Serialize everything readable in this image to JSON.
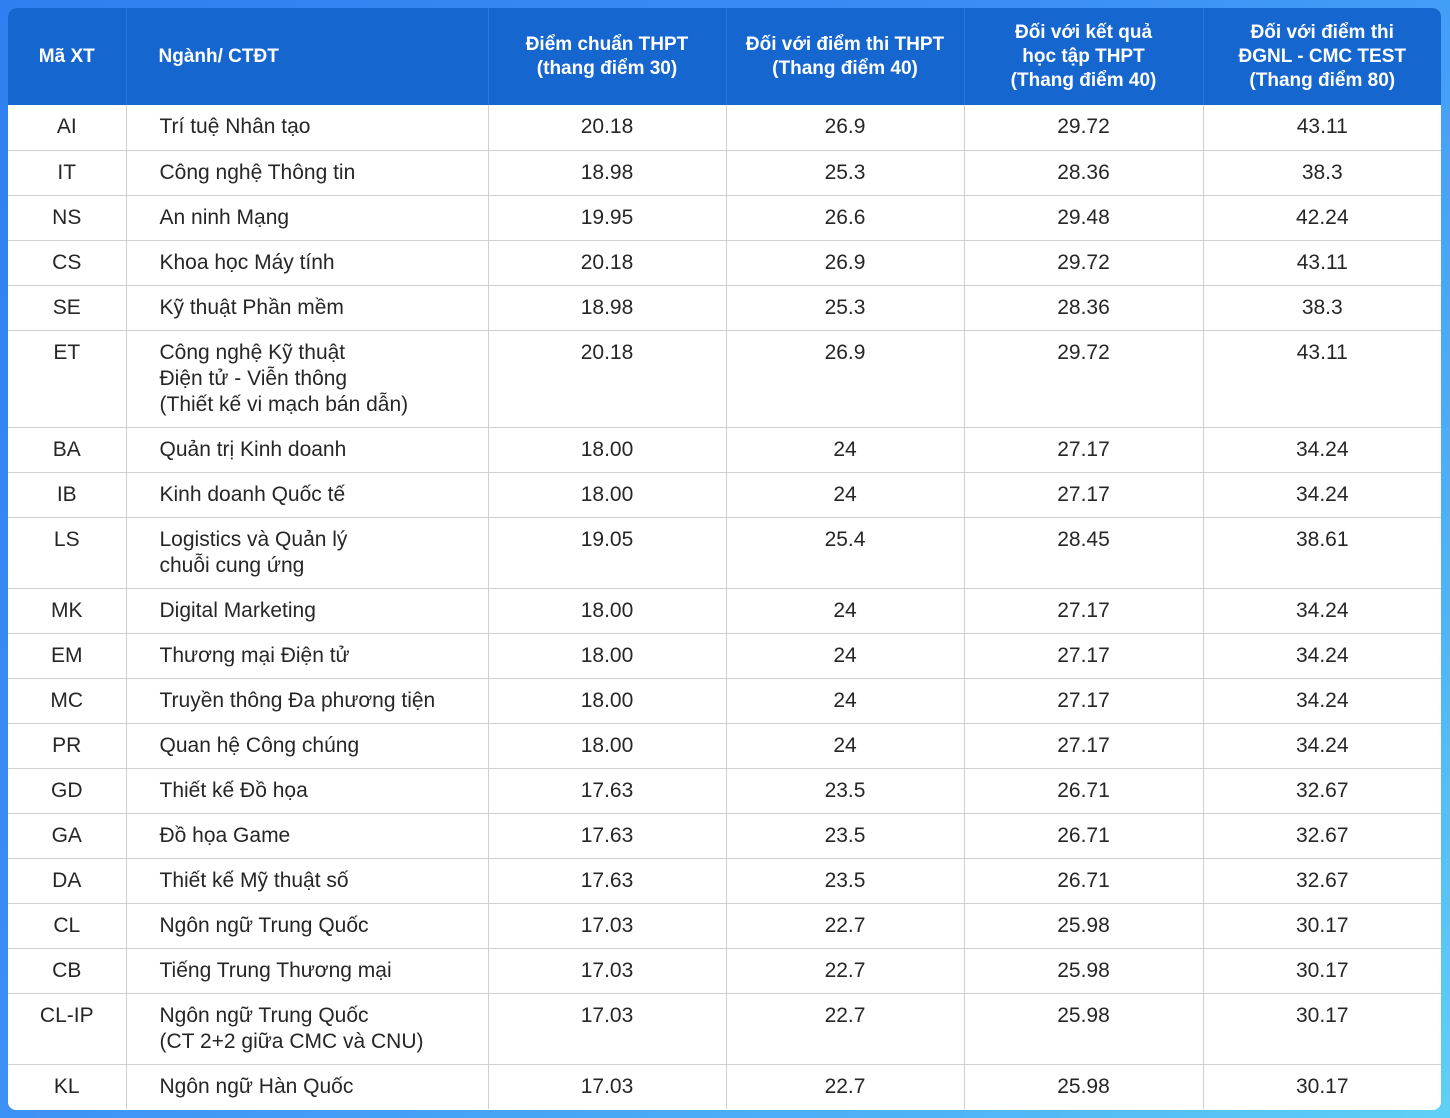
{
  "headers": {
    "code": "Mã XT",
    "program": "Ngành/ CTĐT",
    "thpt30": [
      "Điểm chuẩn THPT",
      "(thang điểm 30)"
    ],
    "thpt40": [
      "Đối với điểm thi THPT",
      "(Thang điểm 40)"
    ],
    "hocba40": [
      "Đối với kết quả",
      "học tập THPT",
      "(Thang điểm 40)"
    ],
    "dgnl80": [
      "Đối với điểm thi",
      "ĐGNL - CMC TEST",
      "(Thang điểm 80)"
    ]
  },
  "rows": [
    {
      "code": "AI",
      "name": [
        "Trí tuệ Nhân tạo"
      ],
      "thpt30": "20.18",
      "thpt40": "26.9",
      "hocba40": "29.72",
      "dgnl80": "43.11"
    },
    {
      "code": "IT",
      "name": [
        "Công nghệ Thông tin"
      ],
      "thpt30": "18.98",
      "thpt40": "25.3",
      "hocba40": "28.36",
      "dgnl80": "38.3"
    },
    {
      "code": "NS",
      "name": [
        "An ninh Mạng"
      ],
      "thpt30": "19.95",
      "thpt40": "26.6",
      "hocba40": "29.48",
      "dgnl80": "42.24"
    },
    {
      "code": "CS",
      "name": [
        "Khoa học Máy tính"
      ],
      "thpt30": "20.18",
      "thpt40": "26.9",
      "hocba40": "29.72",
      "dgnl80": "43.11"
    },
    {
      "code": "SE",
      "name": [
        "Kỹ thuật Phần mềm"
      ],
      "thpt30": "18.98",
      "thpt40": "25.3",
      "hocba40": "28.36",
      "dgnl80": "38.3"
    },
    {
      "code": "ET",
      "name": [
        "Công nghệ Kỹ thuật",
        "Điện tử - Viễn thông",
        "(Thiết kế vi mạch bán dẫn)"
      ],
      "thpt30": "20.18",
      "thpt40": "26.9",
      "hocba40": "29.72",
      "dgnl80": "43.11"
    },
    {
      "code": "BA",
      "name": [
        "Quản trị Kinh doanh"
      ],
      "thpt30": "18.00",
      "thpt40": "24",
      "hocba40": "27.17",
      "dgnl80": "34.24"
    },
    {
      "code": "IB",
      "name": [
        "Kinh doanh Quốc tế"
      ],
      "thpt30": "18.00",
      "thpt40": "24",
      "hocba40": "27.17",
      "dgnl80": "34.24"
    },
    {
      "code": "LS",
      "name": [
        "Logistics và Quản lý",
        "chuỗi cung ứng"
      ],
      "thpt30": "19.05",
      "thpt40": "25.4",
      "hocba40": "28.45",
      "dgnl80": "38.61"
    },
    {
      "code": "MK",
      "name": [
        "Digital Marketing"
      ],
      "thpt30": "18.00",
      "thpt40": "24",
      "hocba40": "27.17",
      "dgnl80": "34.24"
    },
    {
      "code": "EM",
      "name": [
        "Thương mại Điện tử"
      ],
      "thpt30": "18.00",
      "thpt40": "24",
      "hocba40": "27.17",
      "dgnl80": "34.24"
    },
    {
      "code": "MC",
      "name": [
        "Truyền thông Đa phương tiện"
      ],
      "thpt30": "18.00",
      "thpt40": "24",
      "hocba40": "27.17",
      "dgnl80": "34.24"
    },
    {
      "code": "PR",
      "name": [
        "Quan hệ Công chúng"
      ],
      "thpt30": "18.00",
      "thpt40": "24",
      "hocba40": "27.17",
      "dgnl80": "34.24"
    },
    {
      "code": "GD",
      "name": [
        "Thiết kế Đồ họa"
      ],
      "thpt30": "17.63",
      "thpt40": "23.5",
      "hocba40": "26.71",
      "dgnl80": "32.67"
    },
    {
      "code": "GA",
      "name": [
        "Đồ họa Game"
      ],
      "thpt30": "17.63",
      "thpt40": "23.5",
      "hocba40": "26.71",
      "dgnl80": "32.67"
    },
    {
      "code": "DA",
      "name": [
        "Thiết kế Mỹ thuật số"
      ],
      "thpt30": "17.63",
      "thpt40": "23.5",
      "hocba40": "26.71",
      "dgnl80": "32.67"
    },
    {
      "code": "CL",
      "name": [
        "Ngôn ngữ Trung Quốc"
      ],
      "thpt30": "17.03",
      "thpt40": "22.7",
      "hocba40": "25.98",
      "dgnl80": "30.17"
    },
    {
      "code": "CB",
      "name": [
        "Tiếng Trung Thương mại"
      ],
      "thpt30": "17.03",
      "thpt40": "22.7",
      "hocba40": "25.98",
      "dgnl80": "30.17"
    },
    {
      "code": "CL-IP",
      "name": [
        "Ngôn ngữ Trung Quốc",
        "(CT 2+2 giữa CMC và CNU)"
      ],
      "thpt30": "17.03",
      "thpt40": "22.7",
      "hocba40": "25.98",
      "dgnl80": "30.17"
    },
    {
      "code": "KL",
      "name": [
        "Ngôn ngữ Hàn Quốc"
      ],
      "thpt30": "17.03",
      "thpt40": "22.7",
      "hocba40": "25.98",
      "dgnl80": "30.17"
    }
  ],
  "colors": {
    "header_bg": "#1666d0",
    "header_text": "#ffffff",
    "grid_line": "#cfcfcf",
    "frame_gradient_start": "#2f7ff0",
    "frame_gradient_end": "#5fd0f5"
  }
}
